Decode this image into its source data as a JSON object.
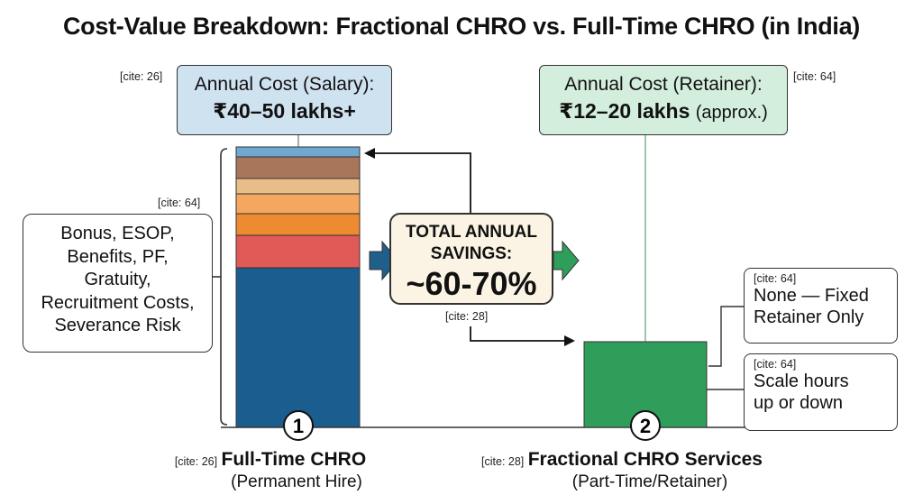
{
  "title": "Cost-Value Breakdown: Fractional CHRO vs. Full-Time CHRO (in India)",
  "left": {
    "cite_cost": "[cite: 26]",
    "cost_label": "Annual Cost (Salary):",
    "cost_value": "₹40–50 lakhs+",
    "cite_components": "[cite: 64]",
    "components": [
      "Bonus, ESOP,",
      "Benefits, PF,",
      "Gratuity,",
      "Recruitment Costs,",
      "Severance Risk"
    ],
    "number": "1",
    "cite_name": "[cite: 26]",
    "name": "Full-Time CHRO",
    "sub": "(Permanent Hire)",
    "stack_colors": [
      "#6fa9d2",
      "#a8765a",
      "#e8bd87",
      "#f5a760",
      "#ee8a2f",
      "#e05a57",
      "#1b5d8e"
    ]
  },
  "savings": {
    "line1": "TOTAL ANNUAL",
    "line2": "SAVINGS:",
    "value": "~60-70%",
    "cite": "[cite: 28]"
  },
  "right": {
    "cite_cost": "[cite: 64]",
    "cost_label": "Annual Cost (Retainer):",
    "cost_value": "₹12–20 lakhs",
    "cost_suffix": "(approx.)",
    "box1_cite": "[cite: 64]",
    "box1_text1": "None — Fixed",
    "box1_text2": "Retainer Only",
    "box2_cite": "[cite: 64]",
    "box2_text1": "Scale hours",
    "box2_text2": "up or down",
    "number": "2",
    "cite_name": "[cite: 28]",
    "name": "Fractional CHRO Services",
    "sub": "(Part-Time/Retainer)",
    "bar_color": "#2f9e5a"
  },
  "colors": {
    "left_box": "#cfe2f0",
    "right_box": "#d4eedd",
    "savings_box": "#fbf4e4",
    "arrow_blue": "#1f5f8b",
    "arrow_green": "#2f9e5a"
  }
}
